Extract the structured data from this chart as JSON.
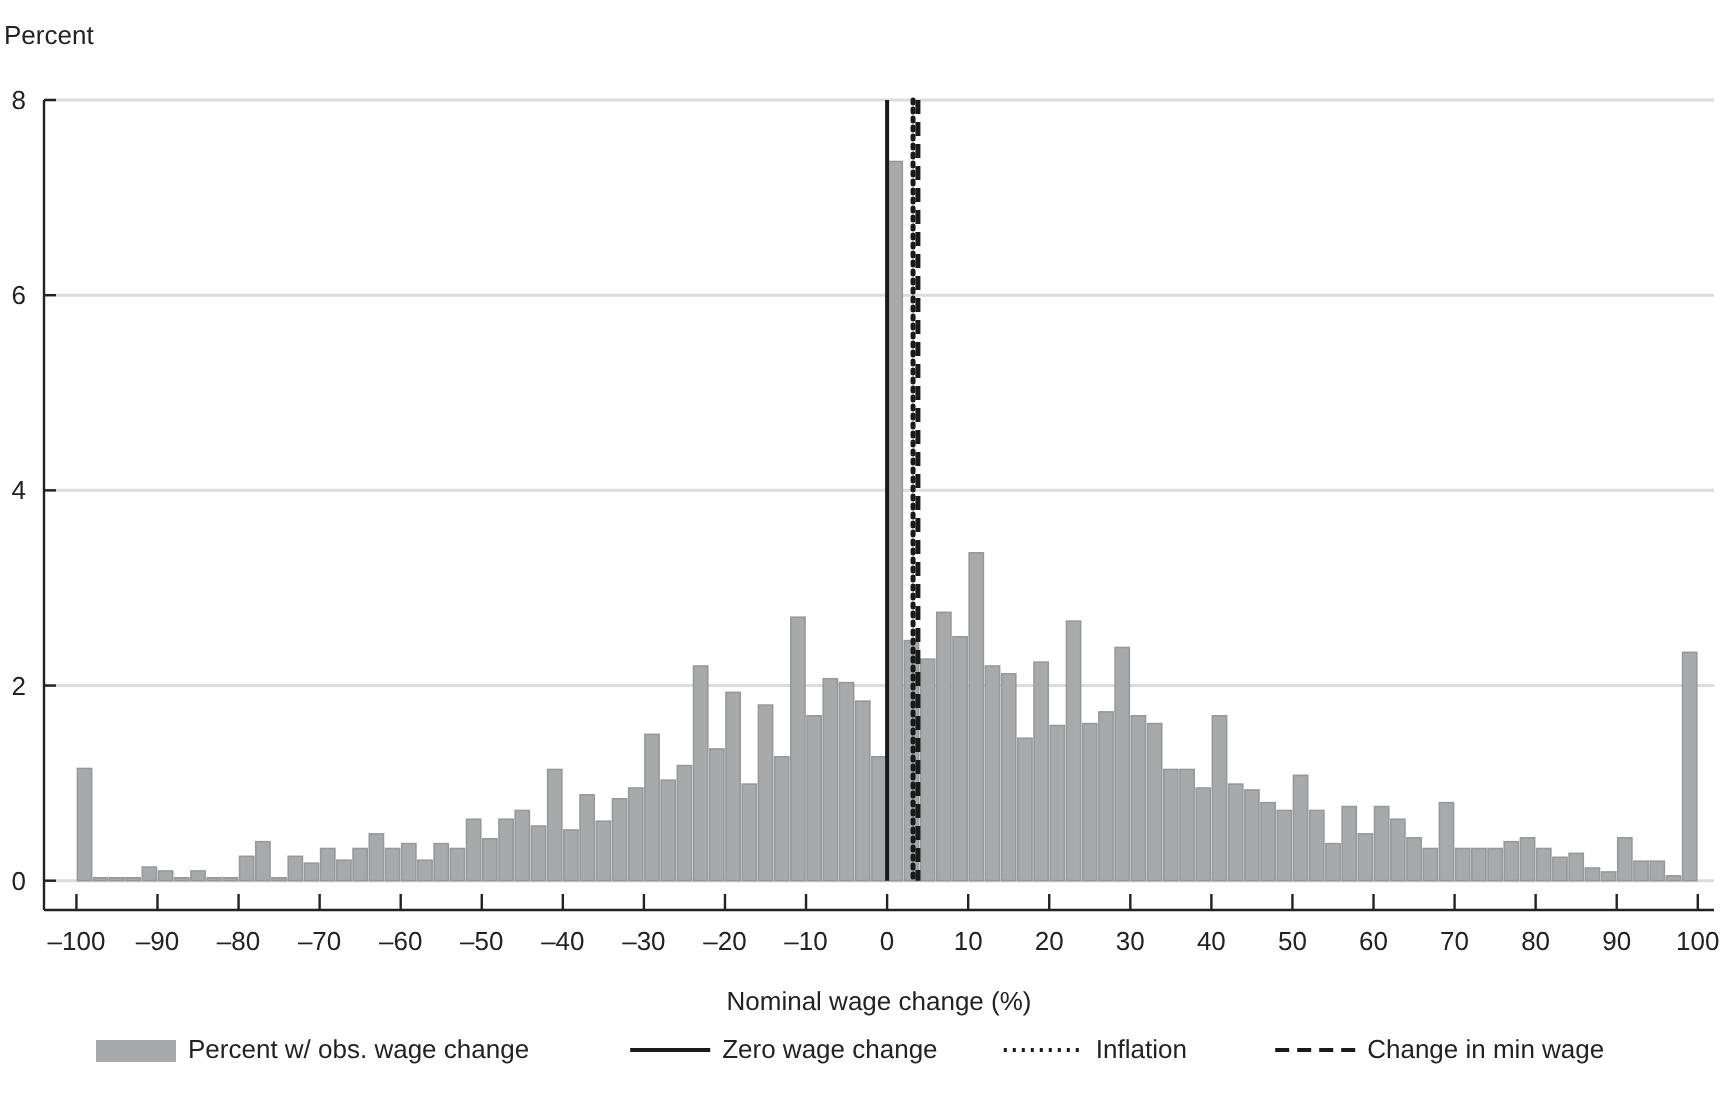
{
  "chart_data": {
    "type": "histogram",
    "ylabel": "Percent",
    "xlabel": "Nominal wage change (%)",
    "bins": [
      -100,
      -98,
      -96,
      -94,
      -92,
      -90,
      -88,
      -86,
      -84,
      -82,
      -80,
      -78,
      -76,
      -74,
      -72,
      -70,
      -68,
      -66,
      -64,
      -62,
      -60,
      -58,
      -56,
      -54,
      -52,
      -50,
      -48,
      -46,
      -44,
      -42,
      -40,
      -38,
      -36,
      -34,
      -32,
      -30,
      -28,
      -26,
      -24,
      -22,
      -20,
      -18,
      -16,
      -14,
      -12,
      -10,
      -8,
      -6,
      -4,
      -2,
      0,
      2,
      4,
      6,
      8,
      10,
      12,
      14,
      16,
      18,
      20,
      22,
      24,
      26,
      28,
      30,
      32,
      34,
      36,
      38,
      40,
      42,
      44,
      46,
      48,
      50,
      52,
      54,
      56,
      58,
      60,
      62,
      64,
      66,
      68,
      70,
      72,
      74,
      76,
      78,
      80,
      82,
      84,
      86,
      88,
      90,
      92,
      94,
      96,
      98,
      100
    ],
    "series": [
      {
        "name": "Percent w/ obs. wage change",
        "color": "#a8a9ab",
        "values": [
          1.15,
          0.03,
          0.03,
          0.03,
          0.14,
          0.1,
          0.03,
          0.1,
          0.03,
          0.03,
          0.25,
          0.4,
          0.03,
          0.25,
          0.18,
          0.33,
          0.21,
          0.33,
          0.48,
          0.33,
          0.38,
          0.21,
          0.38,
          0.33,
          0.63,
          0.43,
          0.63,
          0.72,
          0.56,
          1.14,
          0.52,
          0.88,
          0.61,
          0.84,
          0.95,
          1.5,
          1.03,
          1.18,
          2.2,
          1.35,
          1.93,
          0.99,
          1.8,
          1.27,
          2.7,
          1.69,
          2.07,
          2.03,
          1.84,
          1.27,
          7.37,
          2.46,
          2.27,
          2.75,
          2.5,
          3.36,
          2.2,
          2.12,
          1.46,
          2.24,
          1.59,
          2.66,
          1.61,
          1.73,
          2.39,
          1.69,
          1.61,
          1.14,
          1.14,
          0.95,
          1.69,
          0.99,
          0.93,
          0.8,
          0.72,
          1.08,
          0.72,
          0.38,
          0.76,
          0.48,
          0.76,
          0.63,
          0.44,
          0.33,
          0.8,
          0.33,
          0.33,
          0.33,
          0.4,
          0.44,
          0.33,
          0.24,
          0.28,
          0.13,
          0.09,
          0.44,
          0.2,
          0.2,
          0.05,
          2.34
        ]
      }
    ],
    "ref_lines": [
      {
        "axis": "x",
        "value": 0,
        "label": "Zero wage change",
        "color": "#1a1a1a",
        "line_style": "solid"
      },
      {
        "axis": "x",
        "value": 3.2,
        "label": "Inflation",
        "color": "#1a1a1a",
        "line_style": "dotted"
      },
      {
        "axis": "x",
        "value": 3.8,
        "label": "Change in min wage",
        "color": "#1a1a1a",
        "line_style": "dashed"
      }
    ],
    "xlim": [
      -104,
      102
    ],
    "ylim": [
      -0.3,
      8
    ],
    "xticks": [
      {
        "value": -100,
        "label": "–100"
      },
      {
        "value": -90,
        "label": "–90"
      },
      {
        "value": -80,
        "label": "–80"
      },
      {
        "value": -70,
        "label": "–70"
      },
      {
        "value": -60,
        "label": "–60"
      },
      {
        "value": -50,
        "label": "–50"
      },
      {
        "value": -40,
        "label": "–40"
      },
      {
        "value": -30,
        "label": "–30"
      },
      {
        "value": -20,
        "label": "–20"
      },
      {
        "value": -10,
        "label": "–10"
      },
      0,
      10,
      20,
      30,
      40,
      50,
      60,
      70,
      80,
      90,
      100
    ],
    "yticks": [
      0,
      2,
      4,
      6,
      8
    ],
    "grid": "y",
    "legend": "bottom"
  }
}
